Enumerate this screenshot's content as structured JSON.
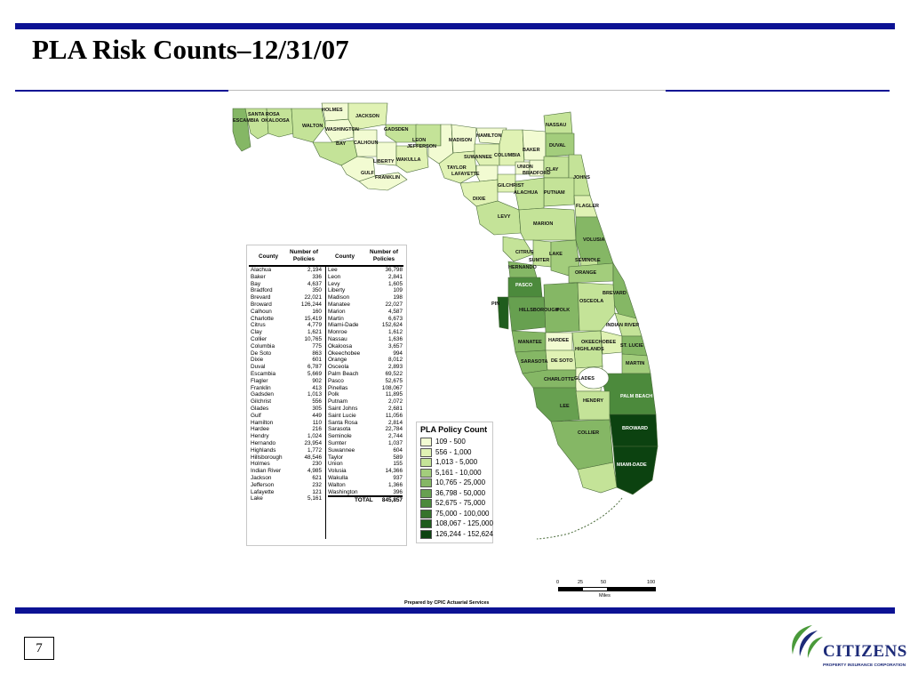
{
  "title": "PLA Risk Counts–12/31/07",
  "page_number": "7",
  "prepared_by": "Prepared by CPIC Actuarial Services",
  "logo": {
    "name": "CITIZENS",
    "tagline": "PROPERTY INSURANCE CORPORATION",
    "icon": "citizens-swoosh-icon"
  },
  "colors": {
    "rule": "#0c1294",
    "logo_green": "#4a9a3a",
    "logo_navy": "#1c2a78"
  },
  "scale": {
    "ticks": [
      "0",
      "25",
      "50",
      "100"
    ],
    "unit": "Miles"
  },
  "legend": {
    "title": "PLA Policy Count",
    "items": [
      {
        "label": "109 - 500",
        "color": "#f2fbd2"
      },
      {
        "label": "556 - 1,000",
        "color": "#e0f2b4"
      },
      {
        "label": "1,013 - 5,000",
        "color": "#c4e398"
      },
      {
        "label": "5,161 - 10,000",
        "color": "#a3cd7c"
      },
      {
        "label": "10,765 - 25,000",
        "color": "#85b765"
      },
      {
        "label": "36,798 - 50,000",
        "color": "#67a050"
      },
      {
        "label": "52,675 - 75,000",
        "color": "#4c8a3c"
      },
      {
        "label": "75,000 - 100,000",
        "color": "#36732c"
      },
      {
        "label": "108,067 - 125,000",
        "color": "#1f5c1d"
      },
      {
        "label": "126,244 - 152,624",
        "color": "#0c4210"
      }
    ]
  },
  "table": {
    "headers": {
      "county": "County",
      "policies": "Number of Policies"
    },
    "left": [
      [
        "Alachua",
        "2,194"
      ],
      [
        "Baker",
        "336"
      ],
      [
        "Bay",
        "4,637"
      ],
      [
        "Bradford",
        "350"
      ],
      [
        "Brevard",
        "22,021"
      ],
      [
        "Broward",
        "126,244"
      ],
      [
        "Calhoun",
        "160"
      ],
      [
        "Charlotte",
        "15,419"
      ],
      [
        "Citrus",
        "4,779"
      ],
      [
        "Clay",
        "1,621"
      ],
      [
        "Collier",
        "10,765"
      ],
      [
        "Columbia",
        "775"
      ],
      [
        "De Soto",
        "863"
      ],
      [
        "Dixie",
        "601"
      ],
      [
        "Duval",
        "6,787"
      ],
      [
        "Escambia",
        "5,669"
      ],
      [
        "Flagler",
        "902"
      ],
      [
        "Franklin",
        "413"
      ],
      [
        "Gadsden",
        "1,013"
      ],
      [
        "Gilchrist",
        "556"
      ],
      [
        "Glades",
        "305"
      ],
      [
        "Gulf",
        "449"
      ],
      [
        "Hamilton",
        "110"
      ],
      [
        "Hardee",
        "216"
      ],
      [
        "Hendry",
        "1,024"
      ],
      [
        "Hernando",
        "23,954"
      ],
      [
        "Highlands",
        "1,772"
      ],
      [
        "Hillsborough",
        "48,546"
      ],
      [
        "Holmes",
        "230"
      ],
      [
        "Indian River",
        "4,985"
      ],
      [
        "Jackson",
        "621"
      ],
      [
        "Jefferson",
        "232"
      ],
      [
        "Lafayette",
        "121"
      ],
      [
        "Lake",
        "5,161"
      ]
    ],
    "right": [
      [
        "Lee",
        "36,798"
      ],
      [
        "Leon",
        "2,841"
      ],
      [
        "Levy",
        "1,605"
      ],
      [
        "Liberty",
        "109"
      ],
      [
        "Madison",
        "198"
      ],
      [
        "Manatee",
        "22,027"
      ],
      [
        "Marion",
        "4,587"
      ],
      [
        "Martin",
        "6,673"
      ],
      [
        "Miami-Dade",
        "152,624"
      ],
      [
        "Monroe",
        "1,612"
      ],
      [
        "Nassau",
        "1,636"
      ],
      [
        "Okaloosa",
        "3,657"
      ],
      [
        "Okeechobee",
        "994"
      ],
      [
        "Orange",
        "8,012"
      ],
      [
        "Osceola",
        "2,893"
      ],
      [
        "Palm Beach",
        "69,522"
      ],
      [
        "Pasco",
        "52,675"
      ],
      [
        "Pinellas",
        "108,067"
      ],
      [
        "Polk",
        "11,895"
      ],
      [
        "Putnam",
        "2,072"
      ],
      [
        "Saint Johns",
        "2,681"
      ],
      [
        "Saint Lucie",
        "11,056"
      ],
      [
        "Santa Rosa",
        "2,814"
      ],
      [
        "Sarasota",
        "22,784"
      ],
      [
        "Seminole",
        "2,744"
      ],
      [
        "Sumter",
        "1,037"
      ],
      [
        "Suwannee",
        "604"
      ],
      [
        "Taylor",
        "589"
      ],
      [
        "Union",
        "155"
      ],
      [
        "Volusia",
        "14,366"
      ],
      [
        "Wakulla",
        "937"
      ],
      [
        "Walton",
        "1,366"
      ],
      [
        "Washington",
        "396"
      ]
    ],
    "total_label": "TOTAL",
    "total_value": "845,857"
  },
  "map_labels": [
    "SANTA ROSA",
    "ESCAMBIA",
    "OKALOOSA",
    "HOLMES",
    "JACKSON",
    "WALTON",
    "WASHINGTON",
    "GADSDEN",
    "HAMILTON",
    "NASSAU",
    "BAY",
    "CALHOUN",
    "LEON",
    "JEFFERSON",
    "MADISON",
    "BAKER",
    "DUVAL",
    "LIBERTY",
    "WAKULLA",
    "SUWANNEE",
    "COLUMBIA",
    "UNION",
    "BRADFORD",
    "CLAY",
    "TAYLOR",
    "LAFAYETTE",
    "GULF",
    "FRANKLIN",
    "GILCHRIST",
    "ALACHUA",
    "PUTNAM",
    "JOHNS",
    "DIXIE",
    "FLAGLER",
    "LEVY",
    "MARION",
    "VOLUSIA",
    "CITRUS",
    "LAKE",
    "SUMTER",
    "HERNANDO",
    "SEMINOLE",
    "ORANGE",
    "PASCO",
    "BREVARD",
    "PIN",
    "HILLSBOROUGH",
    "POLK",
    "OSCEOLA",
    "INDIAN RIVER",
    "MANATEE",
    "HARDEE",
    "OKEECHOBEE",
    "HIGHLANDS",
    "ST. LUCIE",
    "SARASOTA",
    "DE SOTO",
    "MARTIN",
    "CHARLOTTE",
    "GLADES",
    "PALM BEACH",
    "LEE",
    "HENDRY",
    "COLLIER",
    "BROWARD",
    "MIAMI-DADE"
  ]
}
